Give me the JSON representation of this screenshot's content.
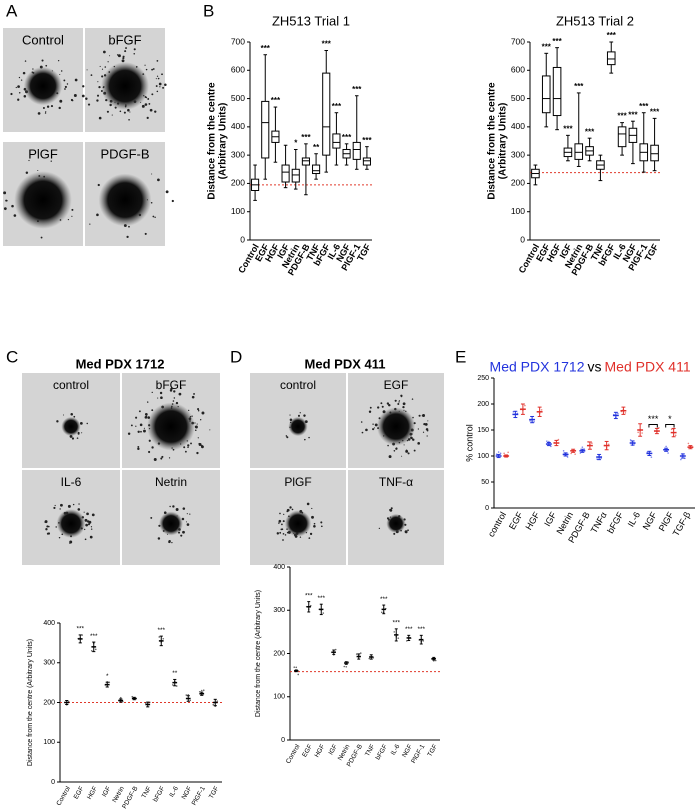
{
  "panel_labels": [
    "A",
    "B",
    "C",
    "D",
    "E"
  ],
  "images": {
    "A": [
      "Control",
      "bFGF",
      "PlGF",
      "PDGF-B"
    ],
    "C": [
      "control",
      "bFGF",
      "IL-6",
      "Netrin"
    ],
    "D": [
      "control",
      "EGF",
      "PlGF",
      "TNF-α"
    ]
  },
  "chart_data": [
    {
      "type": "box",
      "title": "ZH513 Trial 1",
      "ylabel": [
        "Distance from the centre",
        "(Arbitrary Units)"
      ],
      "categories": [
        "Control",
        "EGF",
        "HGF",
        "IGF",
        "Netrin",
        "PDGF-B",
        "TNF",
        "bFGF",
        "IL-6",
        "NGF",
        "PlGF-1",
        "TGF"
      ],
      "boxes": [
        {
          "min": 140,
          "q1": 175,
          "median": 195,
          "q3": 215,
          "max": 265
        },
        {
          "min": 215,
          "q1": 290,
          "median": 415,
          "q3": 490,
          "max": 655
        },
        {
          "min": 275,
          "q1": 345,
          "median": 365,
          "q3": 385,
          "max": 470
        },
        {
          "min": 185,
          "q1": 205,
          "median": 240,
          "q3": 265,
          "max": 335
        },
        {
          "min": 180,
          "q1": 205,
          "median": 230,
          "q3": 250,
          "max": 320
        },
        {
          "min": 160,
          "q1": 265,
          "median": 280,
          "q3": 290,
          "max": 340
        },
        {
          "min": 215,
          "q1": 235,
          "median": 245,
          "q3": 265,
          "max": 305
        },
        {
          "min": 240,
          "q1": 300,
          "median": 400,
          "q3": 590,
          "max": 670
        },
        {
          "min": 265,
          "q1": 325,
          "median": 345,
          "q3": 375,
          "max": 450
        },
        {
          "min": 265,
          "q1": 290,
          "median": 305,
          "q3": 320,
          "max": 340
        },
        {
          "min": 250,
          "q1": 285,
          "median": 320,
          "q3": 345,
          "max": 510
        },
        {
          "min": 250,
          "q1": 265,
          "median": 280,
          "q3": 290,
          "max": 330
        }
      ],
      "annotations": [
        null,
        "***",
        "***",
        null,
        "*",
        "***",
        "**",
        "***",
        "***",
        "***",
        "***",
        "***"
      ],
      "reference": 195,
      "color": "#000000",
      "reference_color": "#e0392b",
      "ylim": [
        0,
        700
      ],
      "yticks": [
        0,
        100,
        200,
        300,
        400,
        500,
        600,
        700
      ],
      "grid": false
    },
    {
      "type": "box",
      "title": "ZH513 Trial 2",
      "ylabel": [
        "Distance from the centre",
        "(Arbitrary Units)"
      ],
      "categories": [
        "Control",
        "EGF",
        "HGF",
        "IGF",
        "Netrin",
        "PDGF-B",
        "TNF",
        "bFGF",
        "IL-6",
        "NGF",
        "PlGF-1",
        "TGF"
      ],
      "boxes": [
        {
          "min": 195,
          "q1": 220,
          "median": 235,
          "q3": 250,
          "max": 265
        },
        {
          "min": 400,
          "q1": 450,
          "median": 500,
          "q3": 580,
          "max": 660
        },
        {
          "min": 390,
          "q1": 440,
          "median": 500,
          "q3": 610,
          "max": 680
        },
        {
          "min": 280,
          "q1": 295,
          "median": 310,
          "q3": 325,
          "max": 370
        },
        {
          "min": 260,
          "q1": 285,
          "median": 310,
          "q3": 340,
          "max": 520
        },
        {
          "min": 280,
          "q1": 300,
          "median": 315,
          "q3": 330,
          "max": 360
        },
        {
          "min": 210,
          "q1": 250,
          "median": 265,
          "q3": 280,
          "max": 300
        },
        {
          "min": 590,
          "q1": 620,
          "median": 640,
          "q3": 665,
          "max": 700
        },
        {
          "min": 300,
          "q1": 330,
          "median": 375,
          "q3": 400,
          "max": 415
        },
        {
          "min": 270,
          "q1": 345,
          "median": 370,
          "q3": 395,
          "max": 420
        },
        {
          "min": 240,
          "q1": 280,
          "median": 310,
          "q3": 340,
          "max": 450
        },
        {
          "min": 245,
          "q1": 280,
          "median": 305,
          "q3": 335,
          "max": 430
        }
      ],
      "annotations": [
        null,
        "***",
        "***",
        "***",
        "***",
        "***",
        null,
        "***",
        "***",
        "***",
        "***",
        "***"
      ],
      "reference": 238,
      "color": "#000000",
      "reference_color": "#e0392b",
      "ylim": [
        0,
        700
      ],
      "yticks": [
        0,
        100,
        200,
        300,
        400,
        500,
        600,
        700
      ],
      "grid": false
    },
    {
      "type": "dot",
      "title": "Med PDX 1712",
      "ylabel": [
        "Distance from the centre (Arbitrary Units)"
      ],
      "categories": [
        "Control",
        "EGF",
        "HGF",
        "IGF",
        "Netrin",
        "PDGF-B",
        "TNF",
        "bFGF",
        "IL-6",
        "NGF",
        "PlGF-1",
        "TGF"
      ],
      "series": [
        {
          "color": "#000000",
          "values": [
            200,
            360,
            340,
            245,
            205,
            210,
            195,
            355,
            250,
            210,
            222,
            200
          ],
          "errors": [
            5,
            10,
            12,
            6,
            4,
            3,
            6,
            12,
            8,
            7,
            4,
            8
          ]
        }
      ],
      "annotations": [
        null,
        "***",
        "***",
        "*",
        null,
        null,
        null,
        "***",
        "**",
        null,
        null,
        null
      ],
      "reference": 200,
      "reference_color": "#e0392b",
      "ylim": [
        0,
        400
      ],
      "yticks": [
        0,
        100,
        200,
        300,
        400
      ],
      "grid": false
    },
    {
      "type": "dot",
      "title": "Med PDX 411",
      "ylabel": [
        "Distance from the centre (Arbitrary Units)"
      ],
      "categories": [
        "Control",
        "EGF",
        "HGF",
        "IGF",
        "Netrin",
        "PDGF-B",
        "TNF",
        "bFGF",
        "IL-6",
        "NGF",
        "PlGF-1",
        "TGF"
      ],
      "series": [
        {
          "color": "#000000",
          "values": [
            160,
            308,
            302,
            203,
            178,
            193,
            192,
            302,
            243,
            236,
            232,
            188
          ],
          "errors": [
            2,
            12,
            12,
            5,
            3,
            6,
            5,
            10,
            14,
            6,
            10,
            3
          ]
        }
      ],
      "annotations": [
        null,
        "***",
        "***",
        null,
        null,
        null,
        null,
        "***",
        "***",
        "***",
        "***",
        null
      ],
      "reference": 158,
      "reference_color": "#e0392b",
      "ylim": [
        0,
        400
      ],
      "yticks": [
        0,
        100,
        200,
        300,
        400
      ],
      "grid": false
    },
    {
      "type": "dot",
      "title_joiner": "vs",
      "ylabel": [
        "% control"
      ],
      "categories": [
        "control",
        "EGF",
        "HGF",
        "IGF",
        "Netrin",
        "PDGF-B",
        "TNFα",
        "bFGF",
        "IL-6",
        "NGF",
        "PlGF",
        "TGF-β"
      ],
      "series": [
        {
          "name": "Med PDX 1712",
          "color": "#2233dd",
          "values": [
            100,
            180,
            170,
            123,
            103,
            110,
            98,
            178,
            125,
            105,
            112,
            100
          ],
          "errors": [
            3,
            6,
            6,
            3,
            3,
            3,
            5,
            6,
            4,
            4,
            3,
            4
          ]
        },
        {
          "name": "Med PDX 411",
          "color": "#e0302a",
          "values": [
            100,
            190,
            185,
            125,
            110,
            120,
            120,
            187,
            150,
            148,
            145,
            117
          ],
          "errors": [
            2,
            10,
            9,
            5,
            3,
            7,
            8,
            7,
            12,
            5,
            8,
            3
          ]
        }
      ],
      "brackets": [
        {
          "category": "NGF",
          "text": "***"
        },
        {
          "category": "PlGF",
          "text": "*"
        }
      ],
      "ylim": [
        0,
        250
      ],
      "yticks": [
        0,
        50,
        100,
        150,
        200,
        250
      ],
      "grid": false
    }
  ]
}
